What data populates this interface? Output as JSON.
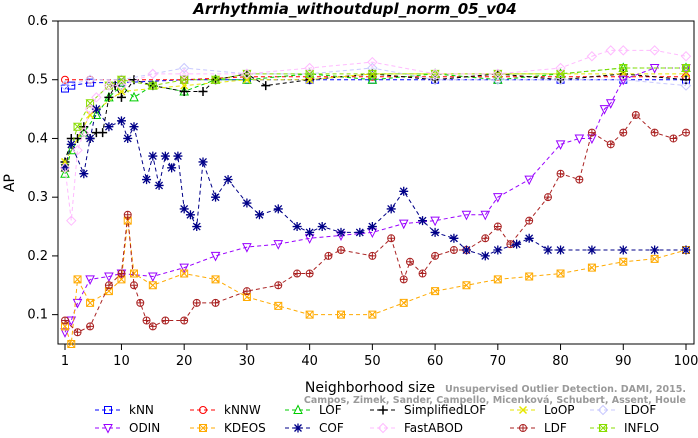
{
  "chart_data": {
    "type": "line",
    "title": "Arrhythmia_withoutdupl_norm_05_v04",
    "xlabel": "Neighborhood size",
    "ylabel": "AP",
    "xlim": [
      1,
      100
    ],
    "ylim": [
      0.05,
      0.6
    ],
    "xticks": [
      "1",
      "10",
      "20",
      "30",
      "40",
      "50",
      "60",
      "70",
      "80",
      "90",
      "100"
    ],
    "yticks": [
      "0.1",
      "0.2",
      "0.3",
      "0.4",
      "0.5",
      "0.6"
    ],
    "legend_position": "bottom",
    "grid": false,
    "series": [
      {
        "name": "kNN",
        "color": "#0000ff",
        "marker": "square",
        "x": [
          1,
          2,
          5,
          10,
          20,
          30,
          40,
          50,
          60,
          70,
          80,
          90,
          100
        ],
        "y": [
          0.485,
          0.49,
          0.495,
          0.495,
          0.5,
          0.5,
          0.5,
          0.5,
          0.5,
          0.5,
          0.5,
          0.5,
          0.5
        ]
      },
      {
        "name": "kNNW",
        "color": "#ff0000",
        "marker": "circle",
        "x": [
          1,
          5,
          10,
          20,
          30,
          40,
          50,
          60,
          70,
          80,
          90,
          100
        ],
        "y": [
          0.5,
          0.5,
          0.5,
          0.5,
          0.505,
          0.505,
          0.505,
          0.505,
          0.505,
          0.505,
          0.505,
          0.505
        ]
      },
      {
        "name": "LOF",
        "color": "#00cc00",
        "marker": "triangle",
        "x": [
          1,
          2,
          4,
          6,
          8,
          10,
          12,
          15,
          20,
          25,
          30,
          40,
          50,
          60,
          70,
          80,
          90,
          100
        ],
        "y": [
          0.34,
          0.38,
          0.41,
          0.44,
          0.47,
          0.49,
          0.47,
          0.49,
          0.48,
          0.5,
          0.5,
          0.51,
          0.5,
          0.51,
          0.5,
          0.51,
          0.52,
          0.52
        ]
      },
      {
        "name": "SimplifiedLOF",
        "color": "#000000",
        "marker": "plus",
        "x": [
          1,
          2,
          3,
          4,
          5,
          6,
          7,
          8,
          9,
          10,
          12,
          15,
          20,
          23,
          25,
          30,
          33,
          40,
          50,
          60,
          70,
          80,
          90,
          100
        ],
        "y": [
          0.36,
          0.4,
          0.4,
          0.42,
          0.4,
          0.41,
          0.41,
          0.47,
          0.49,
          0.47,
          0.5,
          0.49,
          0.48,
          0.48,
          0.5,
          0.51,
          0.49,
          0.5,
          0.51,
          0.5,
          0.51,
          0.5,
          0.51,
          0.5
        ]
      },
      {
        "name": "LoOP",
        "color": "#e6e600",
        "marker": "x",
        "x": [
          1,
          5,
          10,
          20,
          30,
          40,
          50,
          60,
          70,
          80,
          90,
          100
        ],
        "y": [
          0.36,
          0.44,
          0.48,
          0.49,
          0.5,
          0.5,
          0.51,
          0.51,
          0.51,
          0.51,
          0.51,
          0.51
        ]
      },
      {
        "name": "LDOF",
        "color": "#c8c8ff",
        "marker": "diamond",
        "x": [
          1,
          5,
          10,
          15,
          20,
          30,
          40,
          50,
          60,
          70,
          80,
          90,
          100
        ],
        "y": [
          0.49,
          0.5,
          0.5,
          0.51,
          0.52,
          0.51,
          0.51,
          0.52,
          0.5,
          0.5,
          0.5,
          0.5,
          0.49
        ]
      },
      {
        "name": "ODIN",
        "color": "#9900ff",
        "marker": "triangle-down",
        "x": [
          1,
          2,
          3,
          5,
          8,
          10,
          15,
          20,
          25,
          30,
          35,
          40,
          45,
          50,
          55,
          60,
          65,
          68,
          70,
          75,
          80,
          83,
          85,
          87,
          88,
          90,
          95,
          100
        ],
        "y": [
          0.07,
          0.09,
          0.12,
          0.16,
          0.165,
          0.17,
          0.165,
          0.18,
          0.2,
          0.215,
          0.22,
          0.23,
          0.235,
          0.24,
          0.255,
          0.26,
          0.27,
          0.27,
          0.3,
          0.33,
          0.39,
          0.4,
          0.4,
          0.45,
          0.46,
          0.5,
          0.52,
          0.52
        ]
      },
      {
        "name": "KDEOS",
        "color": "#ffaa00",
        "marker": "square-x",
        "x": [
          1,
          2,
          3,
          5,
          8,
          10,
          11,
          12,
          15,
          20,
          25,
          30,
          35,
          40,
          45,
          50,
          55,
          60,
          65,
          70,
          75,
          80,
          85,
          90,
          95,
          100
        ],
        "y": [
          0.08,
          0.05,
          0.16,
          0.12,
          0.14,
          0.16,
          0.26,
          0.17,
          0.15,
          0.17,
          0.16,
          0.13,
          0.115,
          0.1,
          0.1,
          0.1,
          0.12,
          0.14,
          0.15,
          0.16,
          0.165,
          0.17,
          0.18,
          0.19,
          0.195,
          0.21
        ]
      },
      {
        "name": "LDF",
        "color": "#aa2222",
        "marker": "circle-plus",
        "x": [
          1,
          3,
          5,
          8,
          10,
          11,
          12,
          13,
          14,
          15,
          17,
          20,
          22,
          25,
          30,
          35,
          38,
          40,
          43,
          45,
          50,
          53,
          55,
          56,
          58,
          60,
          63,
          65,
          68,
          70,
          72,
          75,
          78,
          80,
          83,
          85,
          88,
          90,
          92,
          95,
          98,
          100
        ],
        "y": [
          0.09,
          0.07,
          0.08,
          0.15,
          0.17,
          0.27,
          0.15,
          0.12,
          0.09,
          0.08,
          0.09,
          0.09,
          0.12,
          0.12,
          0.14,
          0.15,
          0.17,
          0.17,
          0.2,
          0.21,
          0.2,
          0.23,
          0.16,
          0.19,
          0.17,
          0.2,
          0.21,
          0.21,
          0.23,
          0.25,
          0.22,
          0.26,
          0.3,
          0.34,
          0.33,
          0.41,
          0.39,
          0.41,
          0.44,
          0.41,
          0.4,
          0.41
        ]
      },
      {
        "name": "INFLO",
        "color": "#88dd00",
        "marker": "hourglass",
        "x": [
          1,
          3,
          5,
          8,
          10,
          15,
          20,
          25,
          30,
          40,
          50,
          60,
          70,
          80,
          90,
          100
        ],
        "y": [
          0.35,
          0.42,
          0.46,
          0.49,
          0.5,
          0.49,
          0.5,
          0.5,
          0.51,
          0.51,
          0.51,
          0.51,
          0.51,
          0.51,
          0.52,
          0.52
        ]
      },
      {
        "name": "COF",
        "color": "#000088",
        "marker": "star",
        "x": [
          1,
          2,
          4,
          5,
          6,
          8,
          10,
          11,
          12,
          14,
          15,
          16,
          17,
          18,
          19,
          20,
          21,
          22,
          23,
          25,
          27,
          30,
          32,
          35,
          38,
          40,
          42,
          45,
          48,
          50,
          53,
          55,
          58,
          60,
          63,
          65,
          68,
          70,
          73,
          75,
          78,
          80,
          85,
          90,
          95,
          100
        ],
        "y": [
          0.35,
          0.39,
          0.34,
          0.4,
          0.45,
          0.42,
          0.43,
          0.4,
          0.42,
          0.33,
          0.37,
          0.32,
          0.37,
          0.35,
          0.37,
          0.28,
          0.27,
          0.25,
          0.36,
          0.3,
          0.33,
          0.29,
          0.27,
          0.28,
          0.25,
          0.24,
          0.25,
          0.24,
          0.24,
          0.25,
          0.28,
          0.31,
          0.26,
          0.24,
          0.23,
          0.21,
          0.2,
          0.21,
          0.22,
          0.23,
          0.21,
          0.21,
          0.21,
          0.21,
          0.21,
          0.21
        ]
      },
      {
        "name": "FastABOD",
        "color": "#ffbbff",
        "marker": "diamond",
        "x": [
          1,
          2,
          3,
          4,
          5,
          6,
          8,
          10,
          15,
          20,
          30,
          40,
          50,
          60,
          70,
          80,
          85,
          88,
          90,
          95,
          100
        ],
        "y": [
          0.35,
          0.26,
          0.38,
          0.41,
          0.45,
          0.47,
          0.49,
          0.49,
          0.51,
          0.51,
          0.51,
          0.52,
          0.53,
          0.51,
          0.51,
          0.52,
          0.54,
          0.55,
          0.55,
          0.55,
          0.54
        ]
      }
    ],
    "legend_order": [
      "kNN",
      "kNNW",
      "LOF",
      "SimplifiedLOF",
      "LoOP",
      "LDOF",
      "ODIN",
      "KDEOS",
      "COF",
      "FastABOD",
      "LDF",
      "INFLO"
    ]
  },
  "watermark": {
    "line1": "Unsupervised Outlier Detection. DAMI, 2015.",
    "line2": "Campos, Zimek, Sander, Campello, Micenková, Schubert, Assent, Houle"
  }
}
